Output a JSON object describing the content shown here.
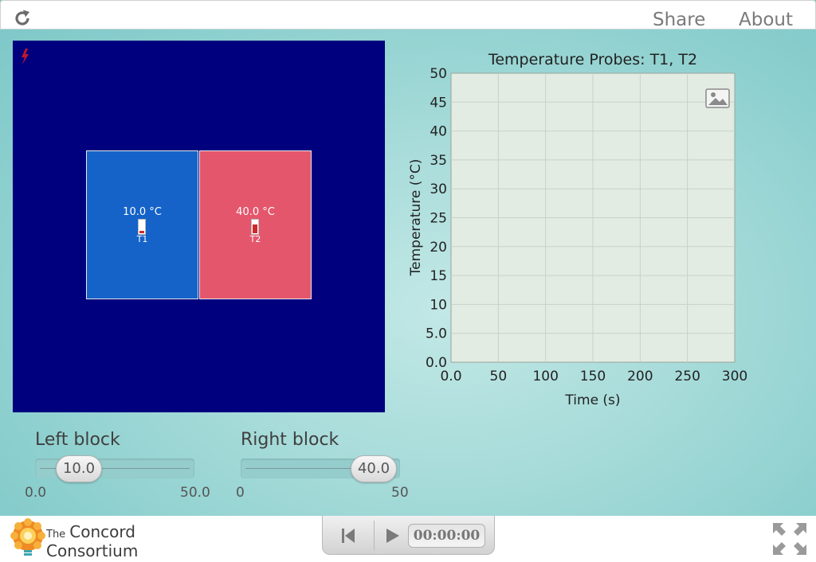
{
  "topbar": {
    "share_label": "Share",
    "about_label": "About"
  },
  "simulation": {
    "left_block": {
      "temperature_label": "10.0 °C",
      "probe_name": "T1"
    },
    "right_block": {
      "temperature_label": "40.0 °C",
      "probe_name": "T2"
    }
  },
  "chart_data": {
    "type": "line",
    "title": "Temperature Probes: T1, T2",
    "xlabel": "Time (s)",
    "ylabel": "Temperature (°C)",
    "xlim": [
      0,
      300
    ],
    "ylim": [
      0,
      50
    ],
    "x_ticks": [
      "0.0",
      "50",
      "100",
      "150",
      "200",
      "250",
      "300"
    ],
    "y_ticks": [
      "0.0",
      "5.0",
      "10",
      "15",
      "20",
      "25",
      "30",
      "35",
      "40",
      "45",
      "50"
    ],
    "grid": true,
    "series": []
  },
  "sliders": {
    "left": {
      "title": "Left block",
      "value": "10.0",
      "min_label": "0.0",
      "max_label": "50.0"
    },
    "right": {
      "title": "Right block",
      "value": "40.0",
      "min_label": "0",
      "max_label": "50"
    }
  },
  "bottombar": {
    "logo": {
      "line1": "The",
      "line2": "Concord",
      "line3": "Consortium"
    },
    "timer": "00:00:00"
  },
  "colors": {
    "sim_background": "#00007f",
    "left_block": "#1563c9",
    "right_block": "#e4566c",
    "plot_background": "#e2ece3"
  },
  "icons": {
    "reload": "reload-icon",
    "bolt": "lightning-icon",
    "snapshot": "image-snapshot-icon",
    "reset": "skip-back-icon",
    "play": "play-icon",
    "fullscreen": "fullscreen-icon"
  }
}
